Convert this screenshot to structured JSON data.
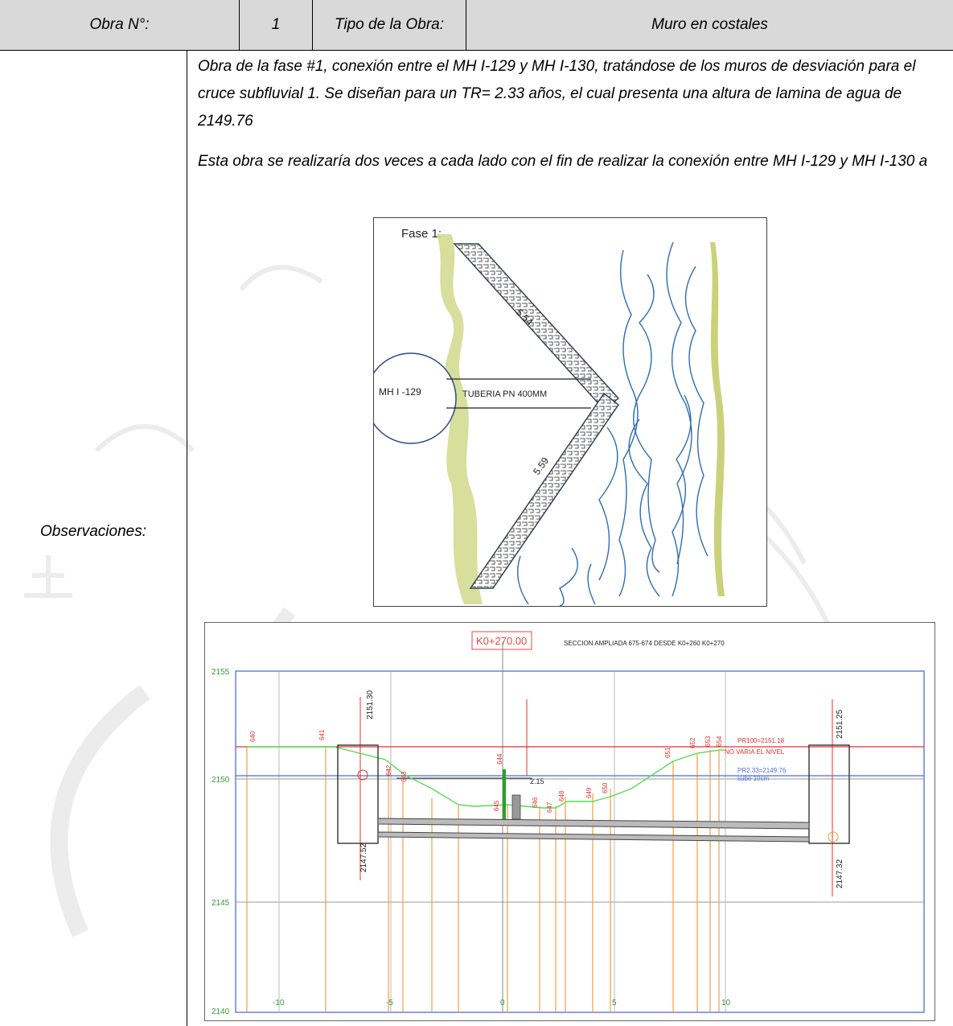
{
  "header": {
    "obra_label": "Obra N°:",
    "obra_number": "1",
    "tipo_label": "Tipo de la Obra:",
    "tipo_value": "Muro en costales"
  },
  "observaciones_label": "Observaciones:",
  "paragraphs": [
    "Obra de la fase #1, conexión entre el MH I-129 y MH I-130, tratándose de los muros de desviación para el cruce subfluvial 1. Se diseñan para un TR= 2.33 años, el cual presenta una altura de lamina de agua de 2149.76",
    "Esta obra se realizaría dos veces a cada lado con el fin de realizar la conexión entre MH I-129 y MH I-130 a"
  ],
  "figure1": {
    "title": "Fase 1:",
    "manhole_label": "MH I -129",
    "pipe_label": "TUBERIA PN 400MM",
    "length_upper": "5.54",
    "length_lower": "5.59"
  },
  "figure2": {
    "station_box": "K0+270.00",
    "section_title": "SECCION AMPLIADA 675-674 DESDE K0+260 K0+270",
    "y_ticks": [
      "2155",
      "2150",
      "2145",
      "2140"
    ],
    "x_ticks": [
      "-10",
      "-5",
      "0",
      "5",
      "10"
    ],
    "dim_left_top": "2151.30",
    "dim_left_bottom": "2147.52",
    "dim_right_top": "2151.25",
    "dim_right_bottom": "2147.32",
    "dim_center": "2.15",
    "pr100": "PR100=2151.18",
    "no_varia": "NO VARIA EL NIVEL",
    "pr233": "PR2.33=2149.76",
    "sube": "sube 10cm",
    "point_labels": [
      "640",
      "641",
      "642",
      "643",
      "644",
      "645",
      "646",
      "647",
      "648",
      "649",
      "650",
      "651",
      "652",
      "653",
      "654"
    ]
  }
}
